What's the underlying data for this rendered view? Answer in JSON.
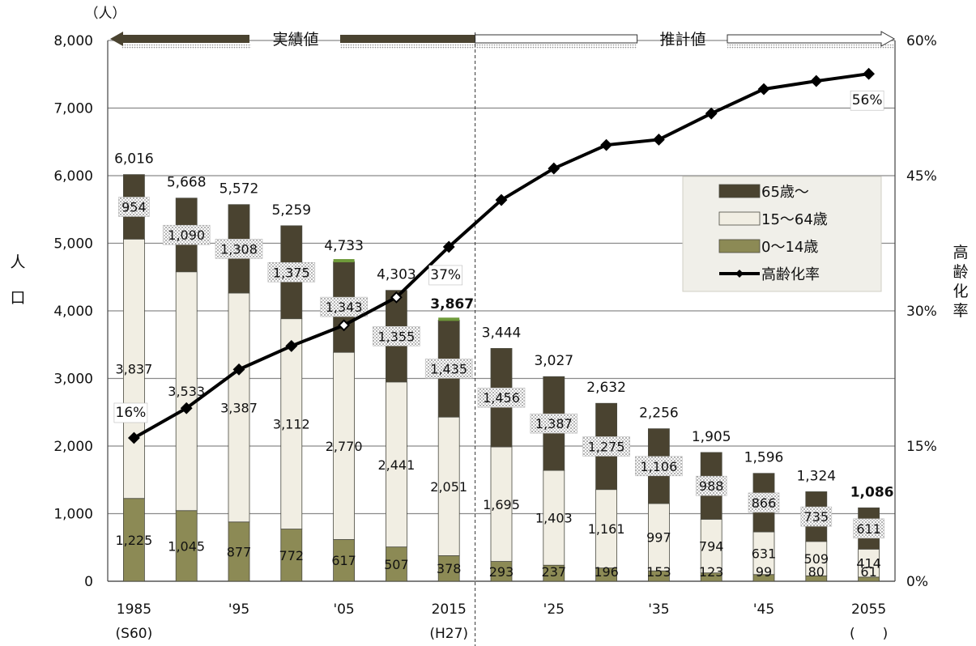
{
  "chart_data": {
    "type": "bar",
    "stacked": true,
    "y_unit": "（人）",
    "ylabel": "人口",
    "y2label": "高齢化率",
    "ylim": [
      0,
      8000
    ],
    "yticks": [
      "0",
      "1,000",
      "2,000",
      "3,000",
      "4,000",
      "5,000",
      "6,000",
      "7,000",
      "8,000"
    ],
    "y2lim": [
      0,
      60
    ],
    "y2ticks": [
      "0%",
      "15%",
      "30%",
      "45%",
      "60%"
    ],
    "x_tick_labels": [
      {
        "index": 0,
        "line1": "1985",
        "line2": "(S60)"
      },
      {
        "index": 2,
        "line1": "'95",
        "line2": ""
      },
      {
        "index": 4,
        "line1": "'05",
        "line2": ""
      },
      {
        "index": 6,
        "line1": "2015",
        "line2": "(H27)"
      },
      {
        "index": 8,
        "line1": "'25",
        "line2": ""
      },
      {
        "index": 10,
        "line1": "'35",
        "line2": ""
      },
      {
        "index": 12,
        "line1": "'45",
        "line2": ""
      },
      {
        "index": 14,
        "line1": "2055",
        "line2": "(　　)"
      }
    ],
    "categories": [
      "1985",
      "1990",
      "1995",
      "2000",
      "2005",
      "2010",
      "2015",
      "2020",
      "2025",
      "2030",
      "2035",
      "2040",
      "2045",
      "2050",
      "2055"
    ],
    "series": [
      {
        "name": "0～14歳",
        "color": "#8c8a55",
        "values": [
          1225,
          1045,
          877,
          772,
          617,
          507,
          378,
          293,
          237,
          196,
          153,
          123,
          99,
          80,
          61
        ],
        "labels": [
          "1,225",
          "1,045",
          "877",
          "772",
          "617",
          "507",
          "378",
          "293",
          "237",
          "196",
          "153",
          "123",
          "99",
          "80",
          "61"
        ]
      },
      {
        "name": "15～64歳",
        "color": "#f1eee3",
        "values": [
          3837,
          3533,
          3387,
          3112,
          2770,
          2441,
          2051,
          1695,
          1403,
          1161,
          997,
          794,
          631,
          509,
          414
        ],
        "labels": [
          "3,837",
          "3,533",
          "3,387",
          "3,112",
          "2,770",
          "2,441",
          "2,051",
          "1,695",
          "1,403",
          "1,161",
          "997",
          "794",
          "631",
          "509",
          "414"
        ]
      },
      {
        "name": "65歳～",
        "color": "#4a4330",
        "values": [
          954,
          1090,
          1308,
          1375,
          1343,
          1355,
          1435,
          1456,
          1387,
          1275,
          1106,
          988,
          866,
          735,
          611
        ],
        "labels": [
          "954",
          "1,090",
          "1,308",
          "1,375",
          "1,343",
          "1,355",
          "1,435",
          "1,456",
          "1,387",
          "1,275",
          "1,106",
          "988",
          "866",
          "735",
          "611"
        ]
      }
    ],
    "totals": [
      6016,
      5668,
      5572,
      5259,
      4733,
      4303,
      3867,
      3444,
      3027,
      2632,
      2256,
      1905,
      1596,
      1324,
      1086
    ],
    "total_labels": [
      "6,016",
      "5,668",
      "5,572",
      "5,259",
      "4,733",
      "4,303",
      "3,867",
      "3,444",
      "3,027",
      "2,632",
      "2,256",
      "1,905",
      "1,596",
      "1,324",
      "1,086"
    ],
    "bold_totals": [
      6,
      14
    ],
    "aging_rate": {
      "name": "高齢化率",
      "values": [
        15.9,
        19.2,
        23.5,
        26.1,
        28.4,
        31.5,
        37.1,
        42.3,
        45.8,
        48.4,
        49.0,
        51.9,
        54.6,
        55.5,
        56.3
      ],
      "annotations": [
        {
          "index": 0,
          "text": "16%"
        },
        {
          "index": 6,
          "text": "37%"
        },
        {
          "index": 14,
          "text": "56%"
        }
      ]
    },
    "legend": {
      "position": "right",
      "items": [
        {
          "label": "65歳～",
          "kind": "box",
          "color": "#4a4330"
        },
        {
          "label": "15～64歳",
          "kind": "box",
          "color": "#f1eee3"
        },
        {
          "label": "0～14歳",
          "kind": "box",
          "color": "#8c8a55"
        },
        {
          "label": "高齢化率",
          "kind": "line",
          "color": "#000000"
        }
      ]
    },
    "banners": {
      "actual": "実績値",
      "projected": "推計値"
    },
    "divider_after_index": 6,
    "grid": true
  }
}
